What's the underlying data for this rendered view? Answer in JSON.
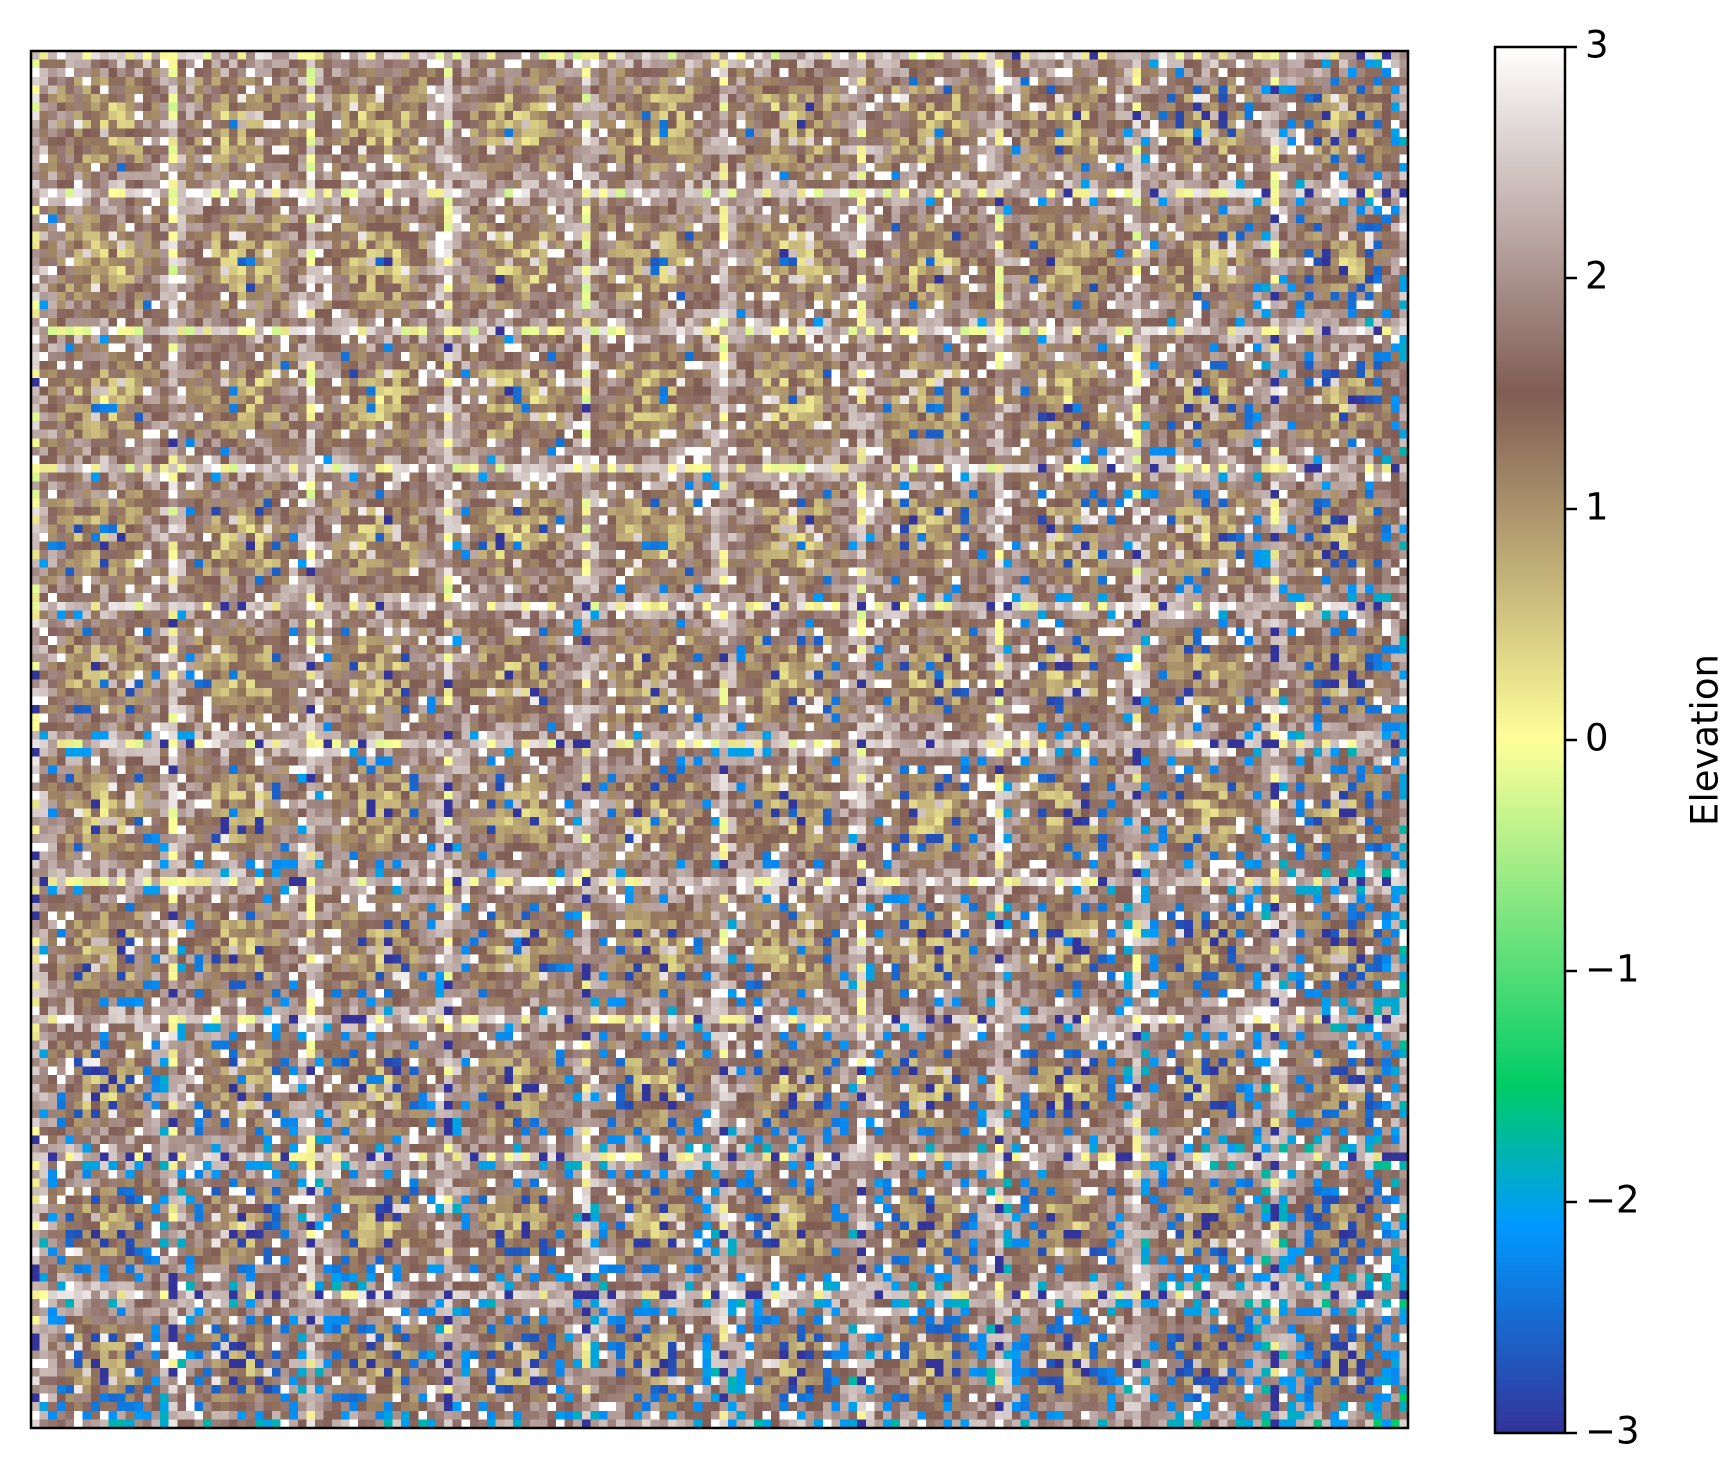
{
  "chart_data": {
    "type": "heatmap",
    "title": "",
    "xlabel": "",
    "ylabel": "",
    "x_ticks_visible": false,
    "y_ticks_visible": false,
    "grid": false,
    "colormap": "terrain",
    "value_range": [
      -3,
      3
    ],
    "colorbar": {
      "label": "Elevation",
      "ticks": [
        3,
        2,
        1,
        0,
        -1,
        -2,
        -3
      ],
      "tick_labels": [
        "3",
        "2",
        "1",
        "0",
        "−1",
        "−2",
        "−3"
      ],
      "position": "right"
    },
    "description_of_field": {
      "grid_resolution": 160,
      "pattern": "blocky procedural terrain: repeating squares of elevated brown/white ridges with low yellow/green centers; deep blue lows concentrated toward the bottom rows and right edge",
      "dominant_range": [
        0.5,
        2.5
      ],
      "low_regions": [
        "bottom band",
        "right edge column"
      ]
    }
  },
  "colors": {
    "cmap_stops": [
      {
        "v": 0.0,
        "color": "#333399"
      },
      {
        "v": 0.15,
        "color": "#0099ff"
      },
      {
        "v": 0.25,
        "color": "#00cc66"
      },
      {
        "v": 0.5,
        "color": "#ffff99"
      },
      {
        "v": 0.75,
        "color": "#805c54"
      },
      {
        "v": 1.0,
        "color": "#ffffff"
      }
    ],
    "frame": "#000000",
    "background": "#ffffff"
  }
}
